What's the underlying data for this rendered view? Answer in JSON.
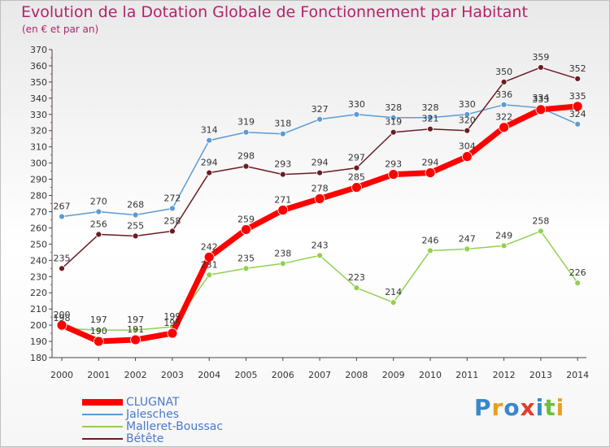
{
  "title": "Evolution de la Dotation Globale de Fonctionnement par Habitant",
  "subtitle": "(en € et par an)",
  "logo": "Proxiti",
  "chart_data": {
    "type": "line",
    "title": "Evolution de la Dotation Globale de Fonctionnement par Habitant",
    "subtitle": "(en € et par an)",
    "x": [
      "2000",
      "2001",
      "2002",
      "2003",
      "2004",
      "2005",
      "2006",
      "2007",
      "2008",
      "2009",
      "2010",
      "2011",
      "2012",
      "2013",
      "2014"
    ],
    "ylim": [
      180,
      370
    ],
    "yticks": [
      180,
      190,
      200,
      210,
      220,
      230,
      240,
      250,
      260,
      270,
      280,
      290,
      300,
      310,
      320,
      330,
      340,
      350,
      360,
      370
    ],
    "grid": false,
    "legend": "bottom-left",
    "series": [
      {
        "name": "Jalesches",
        "color": "#5b9bd5",
        "values": [
          267,
          270,
          268,
          272,
          314,
          319,
          318,
          327,
          330,
          328,
          328,
          330,
          336,
          334,
          324
        ]
      },
      {
        "name": "Malleret-Boussac",
        "color": "#92d050",
        "values": [
          198,
          197,
          197,
          199,
          231,
          235,
          238,
          243,
          223,
          214,
          246,
          247,
          249,
          258,
          226
        ]
      },
      {
        "name": "Bétête",
        "color": "#6b1c23",
        "values": [
          235,
          256,
          255,
          258,
          294,
          298,
          293,
          294,
          297,
          319,
          321,
          320,
          350,
          359,
          352
        ]
      },
      {
        "name": "CLUGNAT",
        "color": "#ff0000",
        "values": [
          200,
          190,
          191,
          195,
          242,
          259,
          271,
          278,
          285,
          293,
          294,
          304,
          322,
          333,
          335
        ]
      }
    ]
  }
}
